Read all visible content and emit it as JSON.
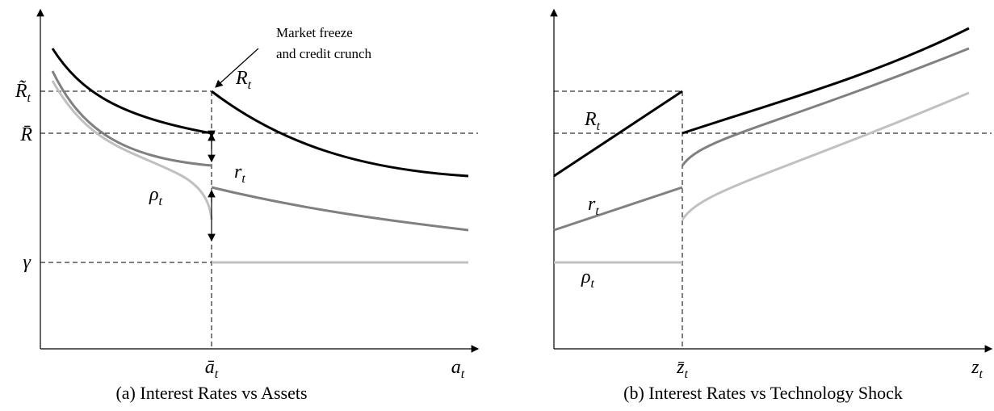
{
  "panel_a": {
    "annotation": [
      "Market freeze",
      "and credit crunch"
    ],
    "y_labels": [
      {
        "base": "R̃",
        "sub": "t"
      },
      {
        "base": "R̄",
        "sub": ""
      },
      {
        "base": "γ",
        "sub": ""
      }
    ],
    "curve_labels": [
      {
        "base": "R",
        "sub": "t"
      },
      {
        "base": "r",
        "sub": "t"
      },
      {
        "base": "ρ",
        "sub": "t"
      }
    ],
    "x_labels": [
      {
        "base": "ā",
        "sub": "t"
      },
      {
        "base": "a",
        "sub": "t"
      }
    ],
    "caption": "(a) Interest Rates vs Assets"
  },
  "panel_b": {
    "curve_labels": [
      {
        "base": "R",
        "sub": "t"
      },
      {
        "base": "r",
        "sub": "t"
      },
      {
        "base": "ρ",
        "sub": "t"
      }
    ],
    "x_labels": [
      {
        "base": "z̄",
        "sub": "t"
      },
      {
        "base": "z",
        "sub": "t"
      }
    ],
    "caption": "(b) Interest Rates vs Technology Shock"
  }
}
